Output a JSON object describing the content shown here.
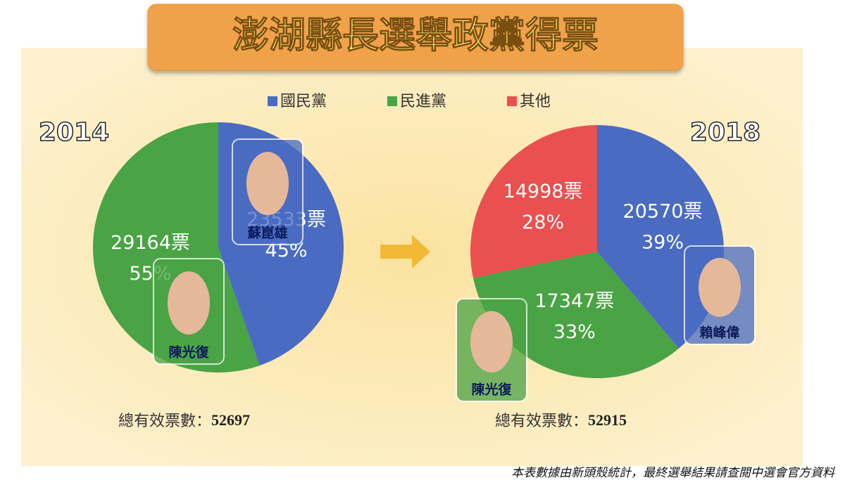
{
  "title": "澎湖縣長選舉政黨得票",
  "legend": [
    {
      "name": "國民黨",
      "color": "#4a6bc2"
    },
    {
      "name": "民進黨",
      "color": "#4aa345"
    },
    {
      "name": "其他",
      "color": "#e9504f"
    }
  ],
  "note": "本表數據由新頭殼統計，最終選舉結果請查閱中選會官方資料",
  "chart_data": [
    {
      "type": "pie",
      "title": "2014",
      "categories": [
        "國民黨",
        "民進黨"
      ],
      "values": [
        23533,
        29164
      ],
      "value_labels": [
        "23533票",
        "29164票"
      ],
      "percents": [
        45,
        55
      ],
      "percent_labels": [
        "45%",
        "55%"
      ],
      "total_label": "總有效票數：",
      "total": 52697,
      "candidates": [
        {
          "name": "蘇崑雄",
          "party": "國民黨"
        },
        {
          "name": "陳光復",
          "party": "民進黨"
        }
      ]
    },
    {
      "type": "pie",
      "title": "2018",
      "categories": [
        "國民黨",
        "民進黨",
        "其他"
      ],
      "values": [
        20570,
        17347,
        14998
      ],
      "value_labels": [
        "20570票",
        "17347票",
        "14998票"
      ],
      "percents": [
        39,
        33,
        28
      ],
      "percent_labels": [
        "39%",
        "33%",
        "28%"
      ],
      "total_label": "總有效票數：",
      "total": 52915,
      "candidates": [
        {
          "name": "賴峰偉",
          "party": "國民黨"
        },
        {
          "name": "陳光復",
          "party": "民進黨"
        }
      ]
    }
  ]
}
